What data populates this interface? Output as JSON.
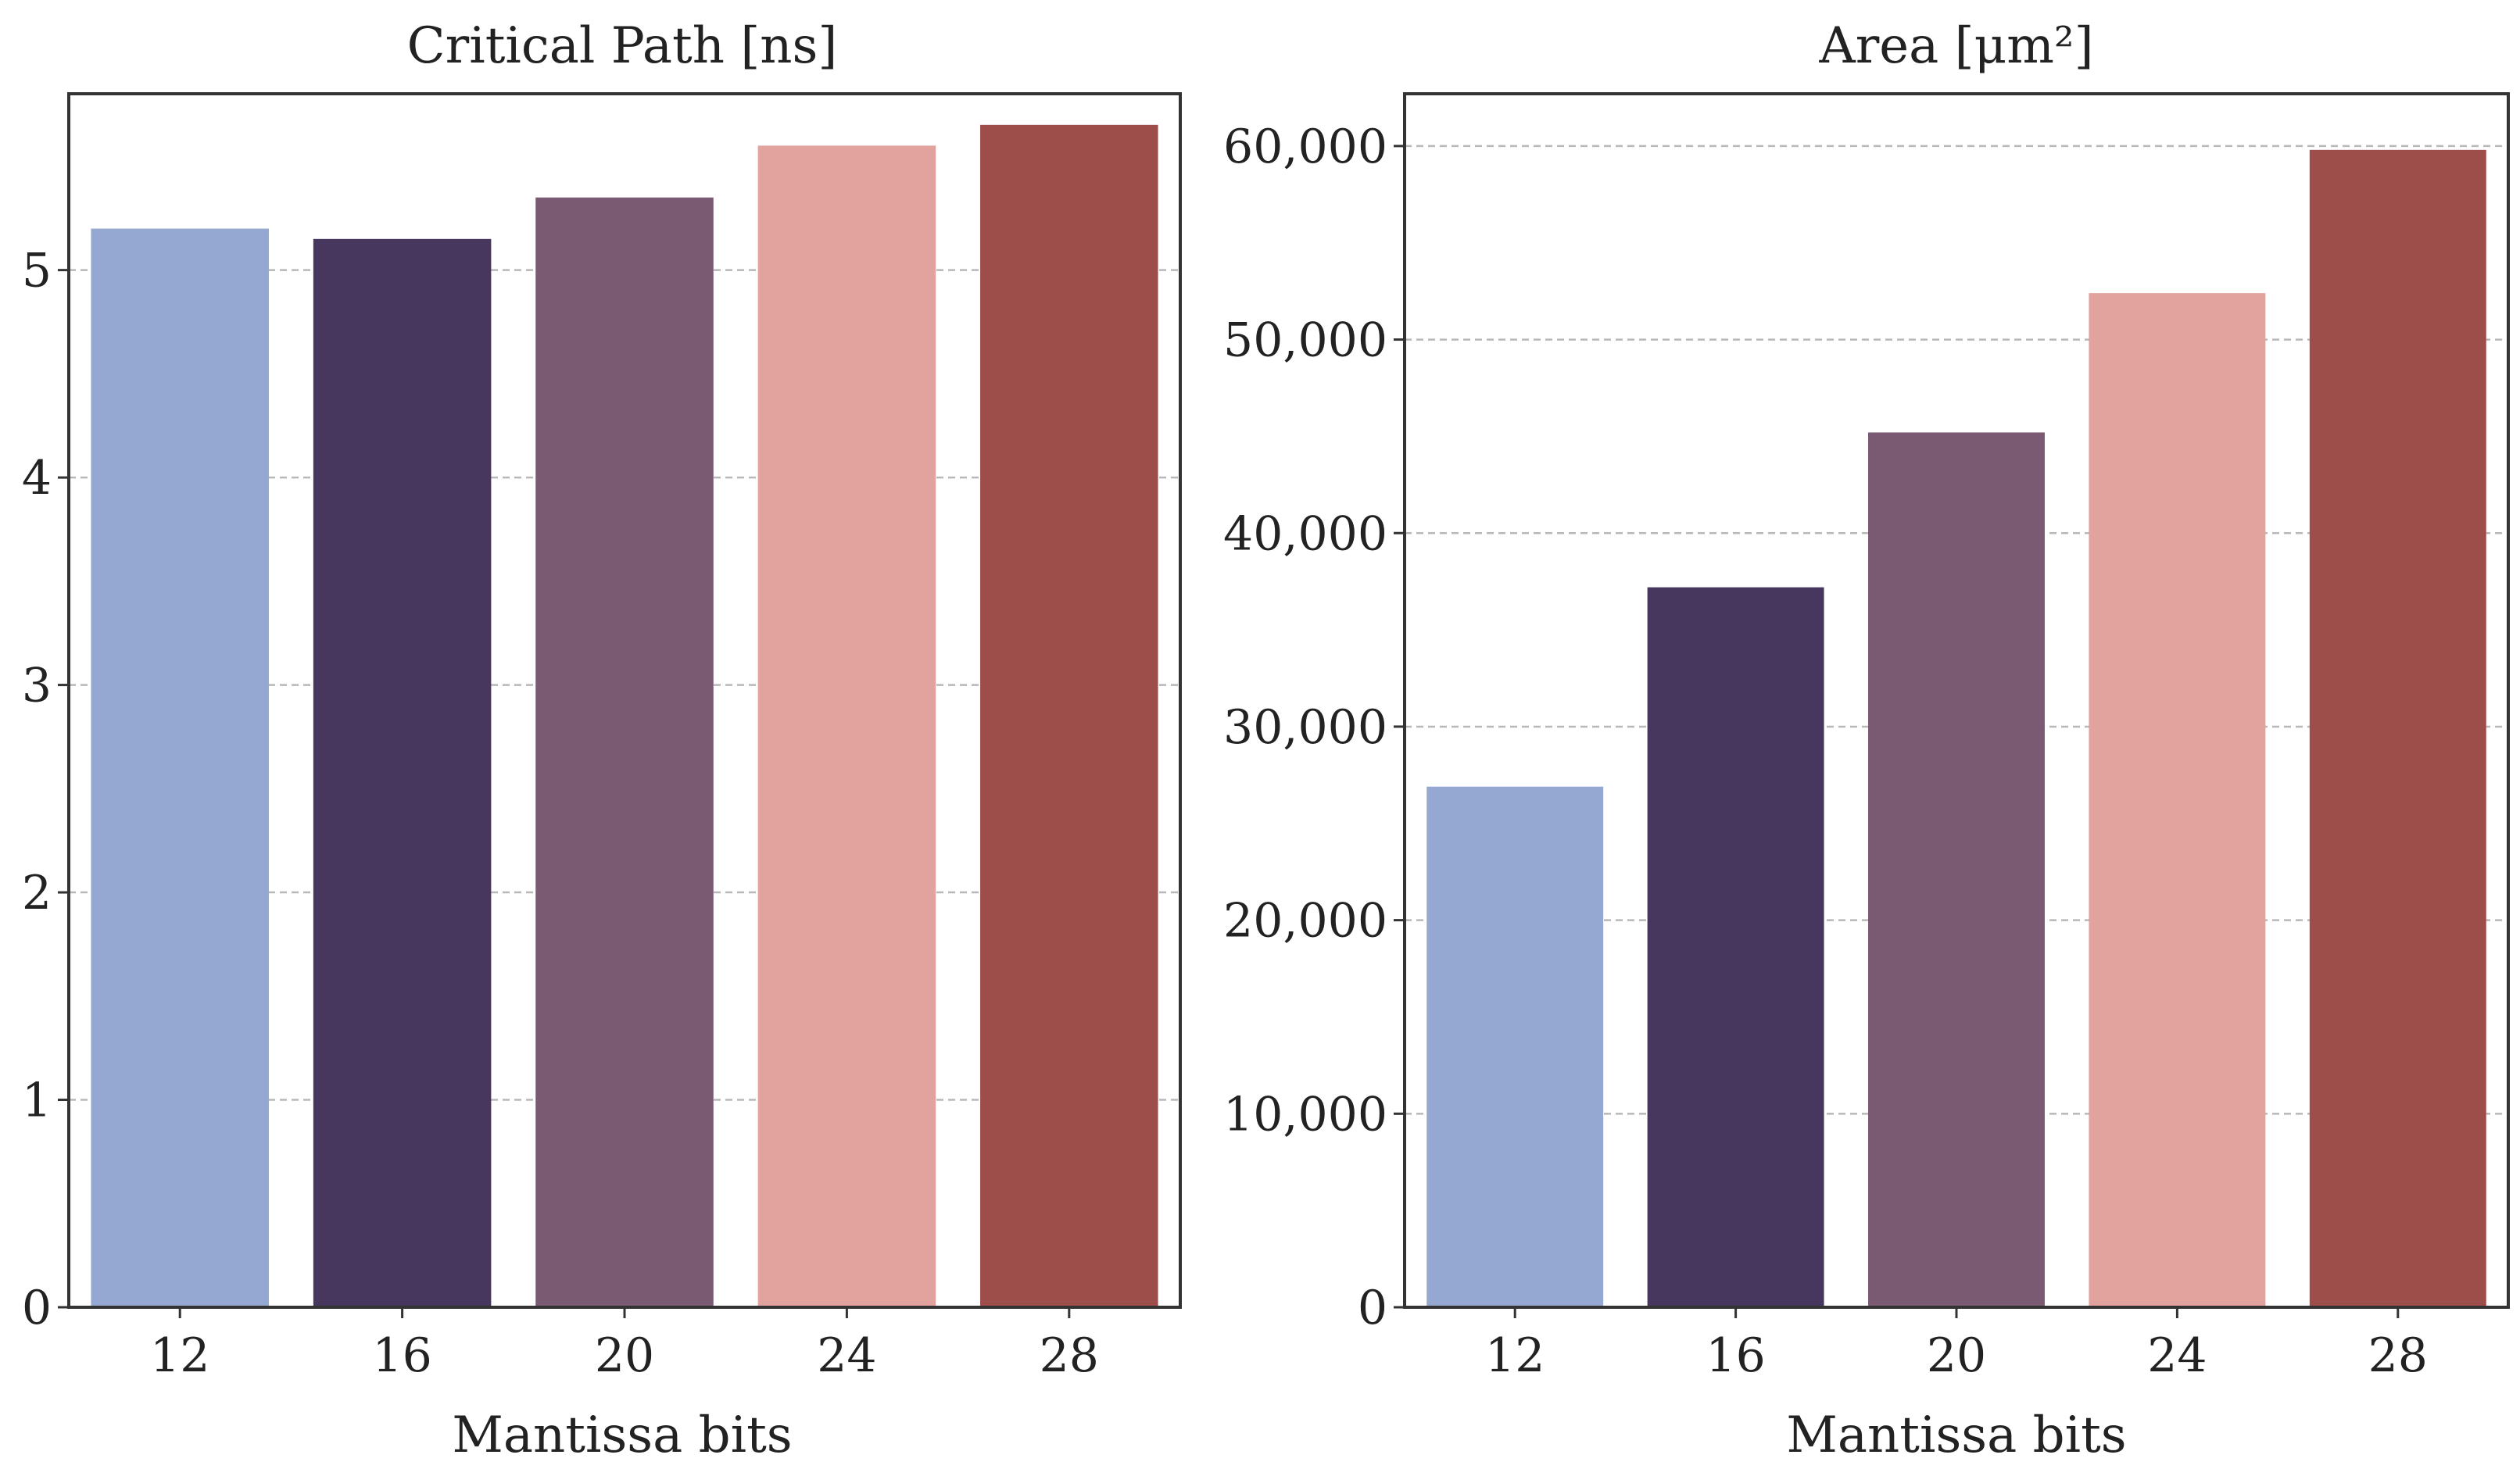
{
  "chart_data": [
    {
      "type": "bar",
      "title": "Critical Path [ns]",
      "xlabel": "Mantissa bits",
      "ylabel": "",
      "categories": [
        "12",
        "16",
        "20",
        "24",
        "28"
      ],
      "values": [
        5.2,
        5.15,
        5.35,
        5.6,
        5.7
      ],
      "ylim": [
        0,
        5.85
      ],
      "yticks": [
        0,
        1,
        2,
        3,
        4,
        5
      ],
      "ytick_labels": [
        "0",
        "1",
        "2",
        "3",
        "4",
        "5"
      ],
      "grid": "y, dashed",
      "colors": [
        "#95a8d2",
        "#47365e",
        "#7a5972",
        "#e2a29d",
        "#9e4e4a"
      ]
    },
    {
      "type": "bar",
      "title": "Area [μm²]",
      "xlabel": "Mantissa bits",
      "ylabel": "",
      "categories": [
        "12",
        "16",
        "20",
        "24",
        "28"
      ],
      "values": [
        26900,
        37200,
        45200,
        52400,
        59800
      ],
      "ylim": [
        0,
        62700
      ],
      "yticks": [
        0,
        10000,
        20000,
        30000,
        40000,
        50000,
        60000
      ],
      "ytick_labels": [
        "0",
        "10,000",
        "20,000",
        "30,000",
        "40,000",
        "50,000",
        "60,000"
      ],
      "grid": "y, dashed",
      "colors": [
        "#95a8d2",
        "#47365e",
        "#7a5972",
        "#e2a29d",
        "#9e4e4a"
      ]
    }
  ]
}
